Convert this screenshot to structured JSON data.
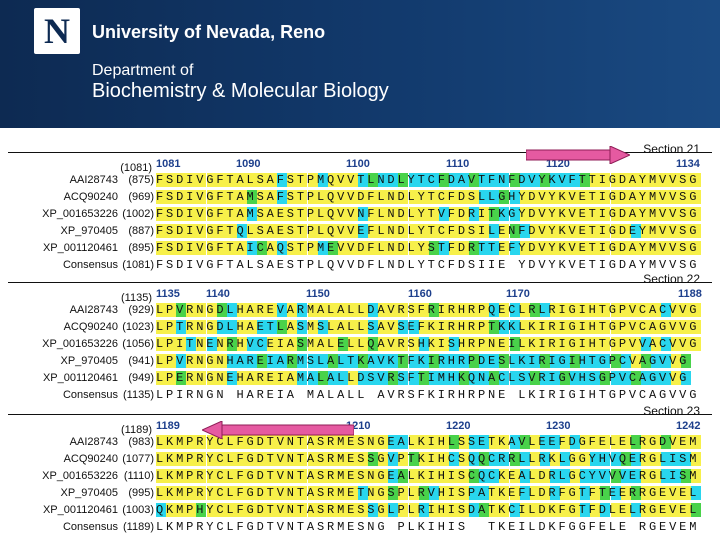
{
  "header": {
    "logo": "N",
    "university": "University of Nevada, Reno",
    "department_line1": "Department of",
    "department_line2": "Biochemistry & Molecular Biology"
  },
  "colors": {
    "yellow": "#f7f04a",
    "cyan": "#29d6ee",
    "green": "#49d24a",
    "header": "#123a6d",
    "arrow": "#e55aa1"
  },
  "sections": [
    {
      "label": "Section 21",
      "start": "(1081)",
      "ruler": [
        "1081",
        "1090",
        "1100",
        "1110",
        "1120",
        "1134"
      ],
      "rows": [
        {
          "name": "AAI28743",
          "num": "(875)",
          "seq": "FSDIVGFTALSAFSTPMQVVTLNDLYTCFDAVTFNFDVYKVFTTIGDAYMVVSG"
        },
        {
          "name": "ACQ90240",
          "num": "(969)",
          "seq": "FSDIVGFTAMSAFSTPLQVVDFLNDLYTCFDSLLGHYDVYKVETIGDAYMVVSG"
        },
        {
          "name": "XP_001653226",
          "num": "(1002)",
          "seq": "FSDIVGFTAMSAESTPLQVVNFLNDLYTVFDRITKGYDVYKVETIGDAYMVVSG"
        },
        {
          "name": "XP_970405",
          "num": "(887)",
          "seq": "FSDIVGFTQLSAESTPLQVVEFLNDLYTCFDSILENFDVYKVETIGDEYMVVSG"
        },
        {
          "name": "XP_001120461",
          "num": "(895)",
          "seq": "FSDIVGFTAICAQSTPMEVVDFLNDLYSTFDRTTEFYDVYKVETIGDAYMVVSG"
        },
        {
          "name": "Consensus",
          "num": "(1081)",
          "seq": "FSDIVGFTALSAESTPLQVVDFLNDLYTCFDSIIE YDVYKVETIGDAYMVVSG"
        }
      ]
    },
    {
      "label": "Section 22",
      "start": "(1135)",
      "ruler": [
        "1135",
        "1140",
        "1150",
        "1160",
        "1170",
        "1188"
      ],
      "rows": [
        {
          "name": "AAI28743",
          "num": "(929)",
          "seq": "LPVRNGDLHAREVARMALALLDAVRSFRIRHRPQECLRLRIGIHTGPVCACVVG"
        },
        {
          "name": "ACQ90240",
          "num": "(1023)",
          "seq": "LPTRNGDLHAETLASMSLALLSAVSEFKIRHRPTKKLKIRIGIHTGPVCAGVVG"
        },
        {
          "name": "XP_001653226",
          "num": "(1056)",
          "seq": "LPITNENRHVCEIASMALELLQAVRSHKISHRPNEILKIRIGIHTGPVVACVVG"
        },
        {
          "name": "XP_970405",
          "num": "(941)",
          "seq": "LPVRNGNHAREIARMSLALTKAVKTFKIRHRPDESLKIRIGIHTGPCVAGVVG"
        },
        {
          "name": "XP_001120461",
          "num": "(949)",
          "seq": "LPERNGNEHAREIAMALALLDSVRSFTIMHKQNACLSVRIGVHSGPVCAGVVG"
        },
        {
          "name": "Consensus",
          "num": "(1135)",
          "seq": "LPIRNGN HAREIA MALALL AVRSFKIRHRPNE LKIRIGIHTGPVCAGVVG"
        }
      ]
    },
    {
      "label": "Section 23",
      "start": "(1189)",
      "ruler": [
        "1189",
        "1210",
        "1220",
        "1230",
        "1242"
      ],
      "rows": [
        {
          "name": "AAI28743",
          "num": "(983)",
          "seq": "LKMPRYCLFGDTVNTASRMESNGEALKIHLSSETKAVLEEFDGFELELRGDVEM"
        },
        {
          "name": "ACQ90240",
          "num": "(1077)",
          "seq": "LKMPRYCLFGDTVNTASRMESSGVPTKIHCSQQCRRLLRKLGGYHVQERGLISM"
        },
        {
          "name": "XP_001653226",
          "num": "(1110)",
          "seq": "LKMPRYCLFGDTVNTASRMESNGEALKIHISCQCKEALDRLGCYVVVERGLISM"
        },
        {
          "name": "XP_970405",
          "num": "(995)",
          "seq": "LKMPRYCLFGDTVNTASRMETNGSPLRVHISPATKEFLDRFGTFTEERRGEVEL"
        },
        {
          "name": "XP_001120461",
          "num": "(1003)",
          "seq": "QKMPHYCLFGDTVNTASRMESSGLPLRIHISDATKCILDKFGTFDLELRGEVEL"
        },
        {
          "name": "Consensus",
          "num": "(1189)",
          "seq": "LKMPRYCLFGDTVNTASRMESNG PLKIHIS  TKEILDKFGGFELE RGEVEM"
        }
      ]
    }
  ]
}
